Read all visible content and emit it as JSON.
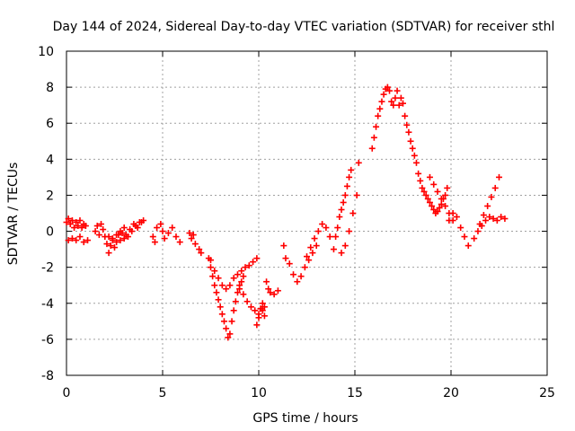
{
  "chart_data": {
    "type": "scatter",
    "title": "Day 144 of 2024, Sidereal Day-to-day VTEC variation (SDTVAR) for receiver sthl",
    "xlabel": "GPS time / hours",
    "ylabel": "SDTVAR / TECUs",
    "xlim": [
      0,
      25
    ],
    "ylim": [
      -8,
      10
    ],
    "xticks": [
      0,
      5,
      10,
      15,
      20,
      25
    ],
    "yticks": [
      -8,
      -6,
      -4,
      -2,
      0,
      2,
      4,
      6,
      8,
      10
    ],
    "xtick_labels": [
      "0",
      "5",
      "10",
      "15",
      "20",
      "25"
    ],
    "ytick_labels": [
      "-8",
      "-6",
      "-4",
      "-2",
      "0",
      "2",
      "4",
      "6",
      "8",
      "10"
    ],
    "grid": true,
    "marker": "plus",
    "color": "#ff0000",
    "series": [
      {
        "name": "SDTVAR",
        "x": [
          0.0,
          0.1,
          0.2,
          0.3,
          0.4,
          0.5,
          0.6,
          0.7,
          0.8,
          0.9,
          1.0,
          0.1,
          0.3,
          0.5,
          0.7,
          0.9,
          1.1,
          1.5,
          1.6,
          1.7,
          1.8,
          1.9,
          2.0,
          2.1,
          2.2,
          2.3,
          2.4,
          2.5,
          2.6,
          2.7,
          2.8,
          2.9,
          3.0,
          2.2,
          2.4,
          2.6,
          2.8,
          3.0,
          3.2,
          3.4,
          3.6,
          3.8,
          4.0,
          3.1,
          3.3,
          3.5,
          3.7,
          3.9,
          4.5,
          4.6,
          4.7,
          4.9,
          5.0,
          5.1,
          5.3,
          5.5,
          5.7,
          5.9,
          6.4,
          6.5,
          6.6,
          6.7,
          6.9,
          7.0,
          7.4,
          7.5,
          7.6,
          7.7,
          7.8,
          7.9,
          8.0,
          8.1,
          8.2,
          8.3,
          8.4,
          8.5,
          8.6,
          8.7,
          8.8,
          8.9,
          9.0,
          9.1,
          9.2,
          7.5,
          7.7,
          7.9,
          8.1,
          8.3,
          8.5,
          8.7,
          8.9,
          9.1,
          9.3,
          9.5,
          9.7,
          9.9,
          9.0,
          9.2,
          9.4,
          9.6,
          9.8,
          10.0,
          10.1,
          10.2,
          10.3,
          9.9,
          10.0,
          10.1,
          10.2,
          10.3,
          10.4,
          10.5,
          10.6,
          10.8,
          11.0,
          11.3,
          11.4,
          11.6,
          11.8,
          12.0,
          12.2,
          12.4,
          12.6,
          12.8,
          13.0,
          12.5,
          12.7,
          12.9,
          13.1,
          13.3,
          13.5,
          13.7,
          13.9,
          14.0,
          14.1,
          14.2,
          14.3,
          14.4,
          14.5,
          14.6,
          14.7,
          14.8,
          14.3,
          14.5,
          14.7,
          14.9,
          15.1,
          15.2,
          15.9,
          16.0,
          16.1,
          16.2,
          16.3,
          16.4,
          16.5,
          16.6,
          16.7,
          16.8,
          16.9,
          17.0,
          17.1,
          17.2,
          17.3,
          17.4,
          17.5,
          17.6,
          17.7,
          17.8,
          17.9,
          18.0,
          18.1,
          18.2,
          18.3,
          18.4,
          18.5,
          18.6,
          18.7,
          18.8,
          18.9,
          19.0,
          19.1,
          19.2,
          19.3,
          19.4,
          19.5,
          19.6,
          19.7,
          19.8,
          18.9,
          19.1,
          19.3,
          19.5,
          19.7,
          19.9,
          20.1,
          19.9,
          20.1,
          20.3,
          20.5,
          20.7,
          20.9,
          21.2,
          21.4,
          21.6,
          21.8,
          22.0,
          22.2,
          22.4,
          22.6,
          22.8,
          21.5,
          21.7,
          21.9,
          22.1,
          22.3,
          22.5
        ],
        "y": [
          0.5,
          0.7,
          0.4,
          0.6,
          0.2,
          0.5,
          0.3,
          0.6,
          0.2,
          0.4,
          0.3,
          -0.5,
          -0.4,
          -0.5,
          -0.3,
          -0.6,
          -0.5,
          0.0,
          0.3,
          -0.2,
          0.4,
          0.1,
          -0.3,
          -0.7,
          -1.2,
          -0.8,
          -0.4,
          -0.9,
          -0.6,
          -0.2,
          -0.5,
          -0.1,
          0.2,
          -0.3,
          -0.5,
          -0.2,
          0.0,
          -0.4,
          -0.3,
          0.0,
          0.3,
          0.5,
          0.6,
          -0.2,
          0.1,
          0.4,
          0.2,
          0.5,
          -0.3,
          -0.6,
          0.2,
          0.4,
          0.0,
          -0.4,
          -0.1,
          0.2,
          -0.3,
          -0.6,
          -0.1,
          -0.4,
          -0.2,
          -0.7,
          -1.0,
          -1.2,
          -1.5,
          -2.0,
          -2.5,
          -3.0,
          -3.4,
          -3.8,
          -4.2,
          -4.6,
          -5.0,
          -5.4,
          -5.9,
          -5.7,
          -5.0,
          -4.4,
          -3.9,
          -3.4,
          -3.0,
          -2.8,
          -2.5,
          -1.6,
          -2.2,
          -2.6,
          -3.0,
          -3.2,
          -3.0,
          -2.6,
          -2.4,
          -2.2,
          -2.0,
          -1.9,
          -1.7,
          -1.5,
          -3.2,
          -3.5,
          -3.9,
          -4.2,
          -4.4,
          -4.6,
          -4.3,
          -4.4,
          -4.7,
          -5.2,
          -4.8,
          -4.3,
          -4.0,
          -4.2,
          -2.8,
          -3.2,
          -3.4,
          -3.5,
          -3.3,
          -0.8,
          -1.5,
          -1.8,
          -2.4,
          -2.8,
          -2.5,
          -2.0,
          -1.6,
          -1.2,
          -0.8,
          -1.4,
          -0.9,
          -0.4,
          0.0,
          0.4,
          0.2,
          -0.3,
          -1.0,
          -0.3,
          0.2,
          0.8,
          1.2,
          1.6,
          2.0,
          2.5,
          3.0,
          3.4,
          -1.2,
          -0.8,
          0.0,
          1.0,
          2.0,
          3.8,
          4.6,
          5.2,
          5.8,
          6.4,
          6.8,
          7.2,
          7.6,
          7.9,
          8.0,
          7.8,
          7.2,
          7.0,
          7.4,
          7.8,
          7.0,
          7.4,
          7.1,
          6.4,
          5.9,
          5.5,
          5.0,
          4.6,
          4.2,
          3.8,
          3.2,
          2.8,
          2.4,
          2.2,
          2.0,
          1.8,
          1.6,
          1.4,
          1.2,
          1.0,
          1.1,
          1.3,
          1.5,
          1.8,
          2.0,
          2.4,
          3.0,
          2.6,
          2.2,
          1.8,
          1.4,
          1.0,
          0.6,
          0.6,
          1.0,
          0.8,
          0.2,
          -0.3,
          -0.8,
          -0.4,
          0.0,
          0.3,
          0.6,
          0.8,
          0.7,
          0.6,
          0.8,
          0.7,
          0.4,
          0.9,
          1.4,
          1.9,
          2.4,
          3.0
        ]
      }
    ]
  }
}
